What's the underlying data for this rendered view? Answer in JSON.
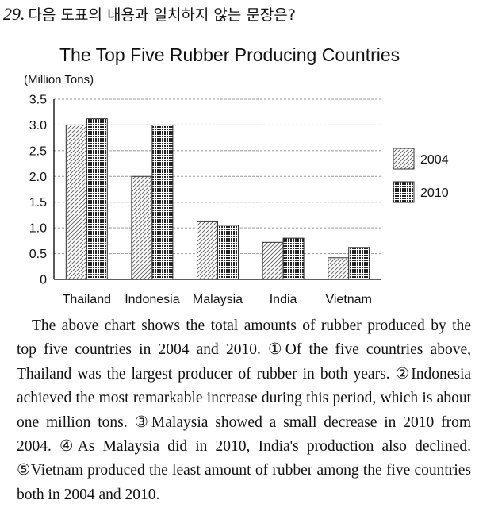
{
  "question": {
    "number": "29.",
    "text_before": "다음 도표의 내용과 일치하지 ",
    "text_underlined": "않는",
    "text_after": " 문장은?"
  },
  "colors": {
    "bar_2004": "#ffffff",
    "bar_2010": "#ffffff",
    "grid": "#999999",
    "axis": "#000000"
  },
  "chart_data": {
    "type": "bar",
    "title": "The Top Five Rubber Producing Countries",
    "ylabel": "(Million Tons)",
    "categories": [
      "Thailand",
      "Indonesia",
      "Malaysia",
      "India",
      "Vietnam"
    ],
    "series": [
      {
        "name": "2004",
        "values": [
          3.0,
          2.0,
          1.12,
          0.72,
          0.42
        ],
        "pattern": "diagonal-hatch"
      },
      {
        "name": "2010",
        "values": [
          3.12,
          3.0,
          1.05,
          0.8,
          0.62
        ],
        "pattern": "dotted-grid"
      }
    ],
    "yticks": [
      "0",
      "0.5",
      "1.0",
      "1.5",
      "2.0",
      "2.5",
      "3.0",
      "3.5"
    ],
    "ylim": [
      0,
      3.5
    ],
    "grid": true,
    "grid_style": "dashed",
    "legend_position": "right"
  },
  "passage": {
    "intro": "The above chart shows the total amounts of rubber produced by the top five countries in 2004 and 2010.",
    "options": [
      {
        "marker": "①",
        "text": "Of the five countries above, Thailand was the largest producer of rubber in both years."
      },
      {
        "marker": "②",
        "text": "Indonesia achieved the most remarkable increase during this period, which is about one million tons."
      },
      {
        "marker": "③",
        "text": "Malaysia showed a small decrease in 2010 from 2004."
      },
      {
        "marker": "④",
        "text": "As Malaysia did in 2010, India's production also declined."
      },
      {
        "marker": "⑤",
        "text": "Vietnam produced the least amount of rubber among the five countries both in 2004 and 2010."
      }
    ]
  }
}
